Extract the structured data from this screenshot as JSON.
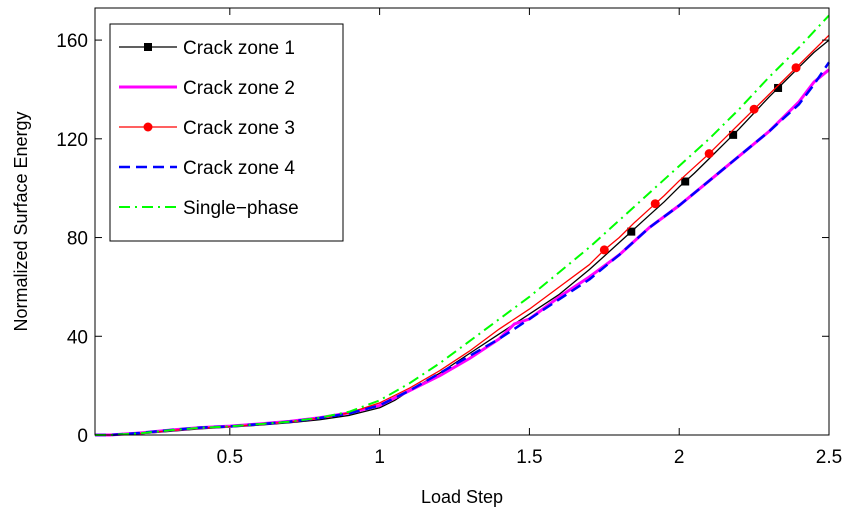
{
  "chart_data": {
    "type": "line",
    "xlabel": "Load Step",
    "ylabel": "Normalized Surface Energy",
    "xlim": [
      0.05,
      2.5
    ],
    "ylim": [
      0,
      173
    ],
    "xticks": [
      0.5,
      1,
      1.5,
      2,
      2.5
    ],
    "xtick_labels": [
      "0.5",
      "1",
      "1.5",
      "2",
      "2.5"
    ],
    "yticks": [
      0,
      40,
      80,
      120,
      160
    ],
    "ytick_labels": [
      "0",
      "40",
      "80",
      "120",
      "160"
    ],
    "grid": false,
    "legend_position": "top-left",
    "series": [
      {
        "name": "Crack zone 1",
        "color": "#000000",
        "style": "solid",
        "marker": "square",
        "x": [
          0.05,
          0.1,
          0.2,
          0.3,
          0.4,
          0.5,
          0.6,
          0.7,
          0.8,
          0.9,
          1.0,
          1.05,
          1.1,
          1.2,
          1.3,
          1.4,
          1.5,
          1.6,
          1.7,
          1.75,
          1.8,
          1.85,
          1.9,
          1.95,
          2.0,
          2.05,
          2.1,
          2.15,
          2.2,
          2.25,
          2.3,
          2.35,
          2.4,
          2.45,
          2.5
        ],
        "y": [
          0,
          0,
          0.5,
          1.5,
          2.5,
          3.2,
          4.0,
          5.0,
          6.2,
          8.0,
          11.0,
          14.0,
          18.0,
          25.0,
          33.0,
          41.0,
          49.0,
          57.0,
          67.0,
          72.5,
          78.0,
          83.5,
          89.0,
          94.5,
          100.5,
          106.0,
          112.0,
          118.0,
          124.0,
          130.5,
          137.0,
          143.0,
          149.0,
          155.0,
          160.0
        ],
        "marker_x": [
          1.84,
          2.02,
          2.18,
          2.33
        ]
      },
      {
        "name": "Crack zone 2",
        "color": "#ff00ff",
        "style": "solid",
        "marker": "none",
        "x": [
          0.05,
          0.1,
          0.2,
          0.3,
          0.4,
          0.5,
          0.6,
          0.7,
          0.8,
          0.9,
          1.0,
          1.1,
          1.2,
          1.3,
          1.4,
          1.45,
          1.5,
          1.6,
          1.7,
          1.8,
          1.9,
          2.0,
          2.1,
          2.2,
          2.3,
          2.35,
          2.4,
          2.45,
          2.5
        ],
        "y": [
          0,
          0,
          0.8,
          2.0,
          3.0,
          3.6,
          4.5,
          5.5,
          7.0,
          9.0,
          12.0,
          18.0,
          24.0,
          31.0,
          39.0,
          45.0,
          47.0,
          56.0,
          64.0,
          73.0,
          84.0,
          93.0,
          103.0,
          113.0,
          123.0,
          129.0,
          135.0,
          143.0,
          148.0
        ]
      },
      {
        "name": "Crack zone 3",
        "color": "#ff0000",
        "style": "solid",
        "marker": "circle",
        "x": [
          0.05,
          0.1,
          0.2,
          0.3,
          0.4,
          0.5,
          0.6,
          0.7,
          0.8,
          0.9,
          1.0,
          1.1,
          1.2,
          1.3,
          1.4,
          1.5,
          1.6,
          1.7,
          1.75,
          1.8,
          1.85,
          1.9,
          1.95,
          2.0,
          2.05,
          2.1,
          2.15,
          2.2,
          2.25,
          2.3,
          2.35,
          2.4,
          2.45,
          2.5
        ],
        "y": [
          0,
          0,
          0.6,
          1.8,
          2.8,
          3.4,
          4.3,
          5.3,
          6.8,
          9.0,
          13.0,
          19.0,
          26.0,
          34.0,
          43.0,
          51.0,
          60.0,
          69.0,
          75.0,
          80.0,
          86.0,
          91.5,
          97.0,
          103.0,
          108.5,
          114.0,
          120.0,
          126.0,
          132.0,
          138.0,
          144.0,
          150.0,
          156.0,
          162.0
        ],
        "marker_x": [
          1.75,
          1.92,
          2.1,
          2.25,
          2.39
        ]
      },
      {
        "name": "Crack zone 4",
        "color": "#0000ff",
        "style": "dashed",
        "marker": "none",
        "x": [
          0.05,
          0.1,
          0.2,
          0.3,
          0.4,
          0.5,
          0.6,
          0.7,
          0.8,
          0.9,
          1.0,
          1.1,
          1.2,
          1.3,
          1.4,
          1.5,
          1.6,
          1.7,
          1.8,
          1.9,
          2.0,
          2.1,
          2.2,
          2.3,
          2.4,
          2.45,
          2.5
        ],
        "y": [
          0,
          0,
          0.8,
          2.0,
          3.0,
          3.5,
          4.4,
          5.4,
          6.9,
          8.8,
          12.0,
          18.0,
          25.0,
          32.0,
          39.0,
          47.0,
          55.0,
          63.0,
          73.0,
          84.0,
          93.0,
          103.0,
          113.0,
          123.0,
          134.0,
          142.0,
          151.0
        ]
      },
      {
        "name": "Single−phase",
        "color": "#00ff00",
        "style": "dashdot",
        "marker": "none",
        "x": [
          0.05,
          0.1,
          0.2,
          0.3,
          0.4,
          0.5,
          0.6,
          0.7,
          0.8,
          0.9,
          1.0,
          1.1,
          1.2,
          1.3,
          1.4,
          1.5,
          1.6,
          1.7,
          1.8,
          1.9,
          2.0,
          2.1,
          2.2,
          2.3,
          2.4,
          2.5
        ],
        "y": [
          0,
          0,
          0.7,
          1.9,
          2.9,
          3.5,
          4.4,
          5.4,
          7.0,
          9.5,
          14.0,
          21.0,
          29.0,
          38.0,
          47.0,
          56.0,
          66.0,
          76.0,
          87.0,
          98.0,
          109.0,
          120.0,
          132.0,
          145.0,
          157.0,
          170.0
        ]
      }
    ]
  }
}
